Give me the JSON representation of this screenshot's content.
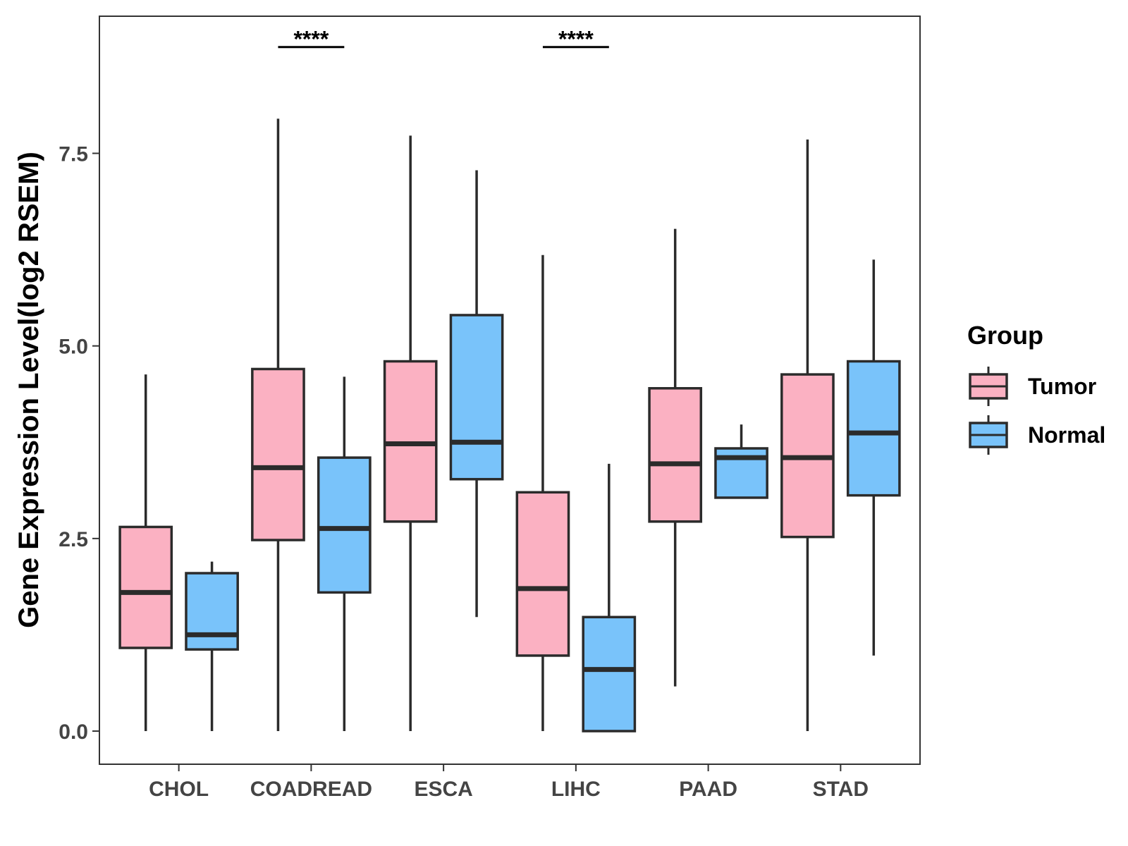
{
  "chart_data": {
    "type": "boxplot",
    "ylabel": "Gene Expression Level(log2 RSEM)",
    "xlabel": "",
    "ylim": [
      -0.43,
      9.28
    ],
    "yticks": [
      0.0,
      2.5,
      5.0,
      7.5
    ],
    "ytick_labels": [
      "0.0",
      "2.5",
      "5.0",
      "7.5"
    ],
    "grid": false,
    "categories": [
      "CHOL",
      "COADREAD",
      "ESCA",
      "LIHC",
      "PAAD",
      "STAD"
    ],
    "significance": [
      {
        "category": "COADREAD",
        "label": "****",
        "y": 8.88
      },
      {
        "category": "LIHC",
        "label": "****",
        "y": 8.88
      }
    ],
    "legend": {
      "title": "Group",
      "placement": "right",
      "entries": [
        "Tumor",
        "Normal"
      ]
    },
    "series": [
      {
        "name": "Tumor",
        "color": "#FBB1C2",
        "boxes": [
          {
            "category": "CHOL",
            "min": 0.0,
            "q1": 1.08,
            "median": 1.8,
            "q3": 2.65,
            "max": 4.63
          },
          {
            "category": "COADREAD",
            "min": 0.0,
            "q1": 2.48,
            "median": 3.42,
            "q3": 4.7,
            "max": 7.95
          },
          {
            "category": "ESCA",
            "min": 0.0,
            "q1": 2.72,
            "median": 3.73,
            "q3": 4.8,
            "max": 7.73
          },
          {
            "category": "LIHC",
            "min": 0.0,
            "q1": 0.98,
            "median": 1.85,
            "q3": 3.1,
            "max": 6.18
          },
          {
            "category": "PAAD",
            "min": 0.58,
            "q1": 2.72,
            "median": 3.47,
            "q3": 4.45,
            "max": 6.52
          },
          {
            "category": "STAD",
            "min": 0.0,
            "q1": 2.52,
            "median": 3.55,
            "q3": 4.63,
            "max": 7.68
          }
        ]
      },
      {
        "name": "Normal",
        "color": "#79C3FA",
        "boxes": [
          {
            "category": "CHOL",
            "min": 0.0,
            "q1": 1.06,
            "median": 1.25,
            "q3": 2.05,
            "max": 2.2
          },
          {
            "category": "COADREAD",
            "min": 0.0,
            "q1": 1.8,
            "median": 2.63,
            "q3": 3.55,
            "max": 4.6
          },
          {
            "category": "ESCA",
            "min": 1.48,
            "q1": 3.27,
            "median": 3.75,
            "q3": 5.4,
            "max": 7.28
          },
          {
            "category": "LIHC",
            "min": 0.0,
            "q1": 0.0,
            "median": 0.8,
            "q3": 1.48,
            "max": 3.47
          },
          {
            "category": "PAAD",
            "min": 3.03,
            "q1": 3.03,
            "median": 3.55,
            "q3": 3.67,
            "max": 3.98
          },
          {
            "category": "STAD",
            "min": 0.98,
            "q1": 3.06,
            "median": 3.87,
            "q3": 4.8,
            "max": 6.12
          }
        ]
      }
    ]
  }
}
